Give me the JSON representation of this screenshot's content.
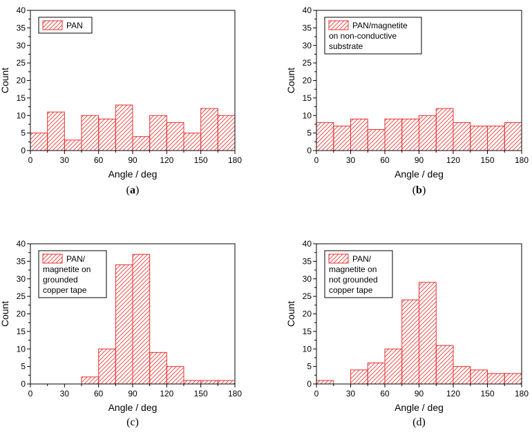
{
  "colors": {
    "bar": "#e8302c",
    "axis": "#000000"
  },
  "chart_data": [
    {
      "type": "bar",
      "panel_label": "(a)",
      "xlabel": "Angle / deg",
      "ylabel": "Count",
      "xlim": [
        0,
        180
      ],
      "ylim": [
        0,
        40
      ],
      "xticks": [
        0,
        30,
        60,
        90,
        120,
        150,
        180
      ],
      "yticks": [
        0,
        5,
        10,
        15,
        20,
        25,
        30,
        35,
        40
      ],
      "bin_width": 15,
      "bin_starts": [
        0,
        15,
        30,
        45,
        60,
        75,
        90,
        105,
        120,
        135,
        150,
        165
      ],
      "values": [
        5,
        11,
        3,
        10,
        9,
        13,
        4,
        10,
        8,
        5,
        12,
        10
      ],
      "legend": [
        "PAN"
      ],
      "legend_position": "top-left"
    },
    {
      "type": "bar",
      "panel_label": "(b)",
      "xlabel": "Angle / deg",
      "ylabel": "Count",
      "xlim": [
        0,
        180
      ],
      "ylim": [
        0,
        40
      ],
      "xticks": [
        0,
        30,
        60,
        90,
        120,
        150,
        180
      ],
      "yticks": [
        0,
        5,
        10,
        15,
        20,
        25,
        30,
        35,
        40
      ],
      "bin_width": 15,
      "bin_starts": [
        0,
        15,
        30,
        45,
        60,
        75,
        90,
        105,
        120,
        135,
        150,
        165
      ],
      "values": [
        8,
        7,
        9,
        6,
        9,
        9,
        10,
        12,
        8,
        7,
        7,
        8
      ],
      "legend": [
        "PAN/magnetite",
        "on non-conductive",
        "substrate"
      ],
      "legend_position": "top-left"
    },
    {
      "type": "bar",
      "panel_label": "(c)",
      "xlabel": "Angle / deg",
      "ylabel": "Count",
      "xlim": [
        0,
        180
      ],
      "ylim": [
        0,
        40
      ],
      "xticks": [
        0,
        30,
        60,
        90,
        120,
        150,
        180
      ],
      "yticks": [
        0,
        5,
        10,
        15,
        20,
        25,
        30,
        35,
        40
      ],
      "bin_width": 15,
      "bin_starts": [
        0,
        15,
        30,
        45,
        60,
        75,
        90,
        105,
        120,
        135,
        150,
        165
      ],
      "values": [
        0,
        0,
        0,
        2,
        10,
        34,
        37,
        9,
        5,
        1,
        1,
        1
      ],
      "legend": [
        "PAN/",
        "magnetite on",
        "grounded",
        "copper tape"
      ],
      "legend_position": "top-left"
    },
    {
      "type": "bar",
      "panel_label": "(d)",
      "xlabel": "Angle / deg",
      "ylabel": "Count",
      "xlim": [
        0,
        180
      ],
      "ylim": [
        0,
        40
      ],
      "xticks": [
        0,
        30,
        60,
        90,
        120,
        150,
        180
      ],
      "yticks": [
        0,
        5,
        10,
        15,
        20,
        25,
        30,
        35,
        40
      ],
      "bin_width": 15,
      "bin_starts": [
        0,
        15,
        30,
        45,
        60,
        75,
        90,
        105,
        120,
        135,
        150,
        165
      ],
      "values": [
        1,
        0,
        4,
        6,
        10,
        24,
        29,
        11,
        5,
        4,
        3,
        3
      ],
      "legend": [
        "PAN/",
        "magnetite on",
        "not grounded",
        "copper tape"
      ],
      "legend_position": "top-left"
    }
  ]
}
